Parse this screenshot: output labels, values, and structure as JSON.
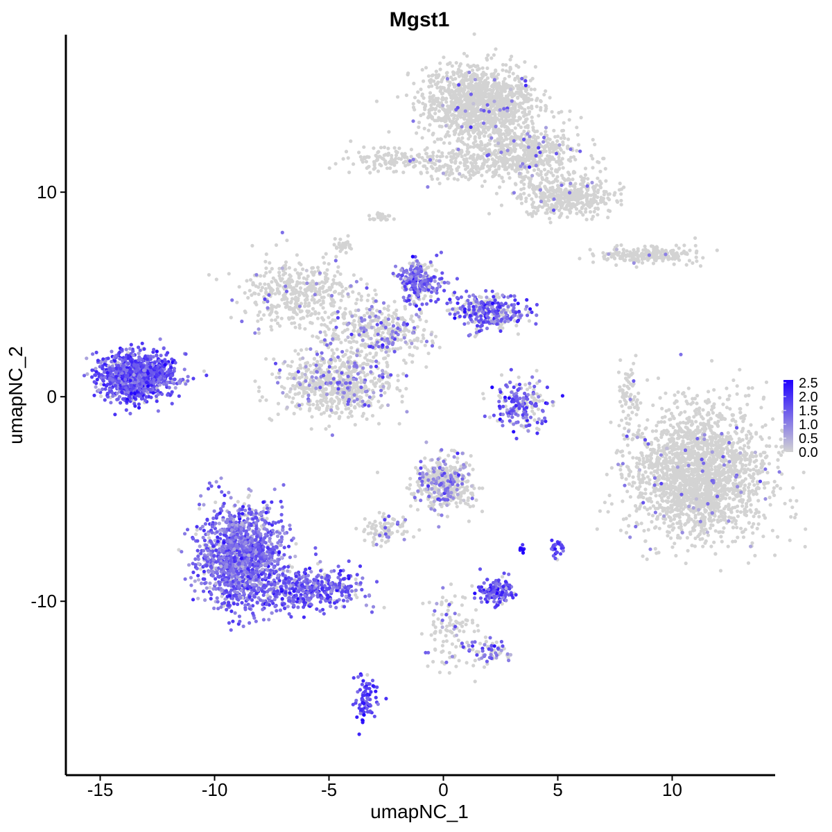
{
  "chart_data": {
    "type": "scatter",
    "title": "Mgst1",
    "xlabel": "umapNC_1",
    "ylabel": "umapNC_2",
    "xlim": [
      -16.5,
      14.5
    ],
    "ylim": [
      -18.5,
      17.7
    ],
    "xticks": [
      -15,
      -10,
      -5,
      0,
      5,
      10
    ],
    "xtick_labels": [
      "-15",
      "-10",
      "-5",
      "0",
      "5",
      "10"
    ],
    "yticks": [
      -10,
      0,
      10
    ],
    "ytick_labels": [
      "-10",
      "0",
      "10"
    ],
    "grid": false,
    "legend": {
      "placement": "right",
      "type": "colorbar",
      "labels": [
        "2.5",
        "2.0",
        "1.5",
        "1.0",
        "0.5",
        "0.0"
      ],
      "values": [
        2.5,
        2.0,
        1.5,
        1.0,
        0.5,
        0.0
      ],
      "low_color": "#d3d3d3",
      "high_color": "#1f00ff",
      "max": 2.6
    },
    "clusters": [
      {
        "name": "top-blob",
        "points": 1300,
        "cx": 1.6,
        "cy": 14.3,
        "sx": 1.2,
        "sy": 0.9,
        "expr_rate": 0.02,
        "expr_mean": 1.2
      },
      {
        "name": "top-arm-right",
        "points": 500,
        "cx": 3.6,
        "cy": 11.9,
        "sx": 1.2,
        "sy": 0.6,
        "expr_rate": 0.04,
        "expr_mean": 1.2
      },
      {
        "name": "top-arm-lower",
        "points": 450,
        "cx": 5.4,
        "cy": 9.8,
        "sx": 1.0,
        "sy": 0.5,
        "expr_rate": 0.02,
        "expr_mean": 1.0
      },
      {
        "name": "top-left-streak",
        "points": 150,
        "cx": -2.0,
        "cy": 11.6,
        "sx": 1.3,
        "sy": 0.3,
        "expr_rate": 0.03,
        "expr_mean": 1.0
      },
      {
        "name": "top-mid-streak",
        "points": 140,
        "cx": 0.8,
        "cy": 11.2,
        "sx": 1.0,
        "sy": 0.4,
        "expr_rate": 0.02,
        "expr_mean": 1.0
      },
      {
        "name": "right-streak",
        "points": 220,
        "cx": 8.9,
        "cy": 6.9,
        "sx": 1.1,
        "sy": 0.2,
        "expr_rate": 0.02,
        "expr_mean": 1.0
      },
      {
        "name": "far-left-blob",
        "points": 950,
        "cx": -13.4,
        "cy": 1.0,
        "sx": 0.85,
        "sy": 0.55,
        "expr_rate": 0.96,
        "expr_mean": 1.55
      },
      {
        "name": "left-upper-streak",
        "points": 420,
        "cx": -6.3,
        "cy": 5.0,
        "sx": 1.3,
        "sy": 0.8,
        "expr_rate": 0.06,
        "expr_mean": 1.0
      },
      {
        "name": "center-ring",
        "points": 650,
        "cx": -4.7,
        "cy": 0.6,
        "sx": 1.2,
        "sy": 0.85,
        "expr_rate": 0.18,
        "expr_mean": 1.0
      },
      {
        "name": "center-bridge",
        "points": 350,
        "cx": -2.8,
        "cy": 3.2,
        "sx": 1.1,
        "sy": 0.6,
        "expr_rate": 0.22,
        "expr_mean": 1.1
      },
      {
        "name": "upper-mid-cluster",
        "points": 260,
        "cx": -1.0,
        "cy": 5.6,
        "sx": 0.45,
        "sy": 0.5,
        "expr_rate": 0.75,
        "expr_mean": 1.4
      },
      {
        "name": "upper-mid-right",
        "points": 330,
        "cx": 2.1,
        "cy": 4.1,
        "sx": 0.8,
        "sy": 0.45,
        "expr_rate": 0.6,
        "expr_mean": 1.4
      },
      {
        "name": "mid-right-arc",
        "points": 200,
        "cx": 3.4,
        "cy": -0.4,
        "sx": 0.6,
        "sy": 0.6,
        "expr_rate": 0.65,
        "expr_mean": 1.5
      },
      {
        "name": "right-large-blob",
        "points": 2300,
        "cx": 11.2,
        "cy": -3.8,
        "sx": 1.45,
        "sy": 1.55,
        "expr_rate": 0.025,
        "expr_mean": 1.0
      },
      {
        "name": "lower-left-triangle",
        "points": 1400,
        "cx": -8.8,
        "cy": -7.8,
        "sx": 0.9,
        "sy": 1.2,
        "expr_rate": 0.9,
        "expr_mean": 1.3
      },
      {
        "name": "lower-left-tail",
        "points": 450,
        "cx": -5.9,
        "cy": -9.4,
        "sx": 1.2,
        "sy": 0.5,
        "expr_rate": 0.9,
        "expr_mean": 1.45
      },
      {
        "name": "mid-lower-cluster",
        "points": 420,
        "cx": 0.0,
        "cy": -4.2,
        "sx": 0.6,
        "sy": 0.65,
        "expr_rate": 0.25,
        "expr_mean": 1.1
      },
      {
        "name": "mid-lower-left",
        "points": 100,
        "cx": -2.5,
        "cy": -6.5,
        "sx": 0.55,
        "sy": 0.35,
        "expr_rate": 0.2,
        "expr_mean": 1.0
      },
      {
        "name": "small-right-blob",
        "points": 130,
        "cx": 2.3,
        "cy": -9.5,
        "sx": 0.35,
        "sy": 0.3,
        "expr_rate": 0.95,
        "expr_mean": 1.6
      },
      {
        "name": "dark-dot-cluster",
        "points": 12,
        "cx": 3.4,
        "cy": -7.5,
        "sx": 0.05,
        "sy": 0.08,
        "expr_rate": 1.0,
        "expr_mean": 2.5
      },
      {
        "name": "small-dot-cluster",
        "points": 30,
        "cx": 5.0,
        "cy": -7.4,
        "sx": 0.15,
        "sy": 0.25,
        "expr_rate": 0.95,
        "expr_mean": 1.6
      },
      {
        "name": "lower-small-cluster",
        "points": 80,
        "cx": -3.4,
        "cy": -14.8,
        "sx": 0.25,
        "sy": 0.5,
        "expr_rate": 0.95,
        "expr_mean": 1.7
      },
      {
        "name": "lower-mid-stream",
        "points": 120,
        "cx": 0.3,
        "cy": -11.5,
        "sx": 0.6,
        "sy": 1.0,
        "expr_rate": 0.2,
        "expr_mean": 1.0
      },
      {
        "name": "lower-right-group",
        "points": 60,
        "cx": 2.2,
        "cy": -12.5,
        "sx": 0.5,
        "sy": 0.3,
        "expr_rate": 0.6,
        "expr_mean": 1.3
      },
      {
        "name": "right-thin-streak",
        "points": 70,
        "cx": 8.1,
        "cy": -0.3,
        "sx": 0.25,
        "sy": 1.0,
        "expr_rate": 0.1,
        "expr_mean": 1.0
      },
      {
        "name": "small-upper-left",
        "points": 30,
        "cx": -4.3,
        "cy": 7.4,
        "sx": 0.2,
        "sy": 0.2,
        "expr_rate": 0.0,
        "expr_mean": 0.0
      },
      {
        "name": "small-upper-mid",
        "points": 25,
        "cx": -2.7,
        "cy": 8.8,
        "sx": 0.2,
        "sy": 0.1,
        "expr_rate": 0.0,
        "expr_mean": 0.0
      }
    ]
  }
}
